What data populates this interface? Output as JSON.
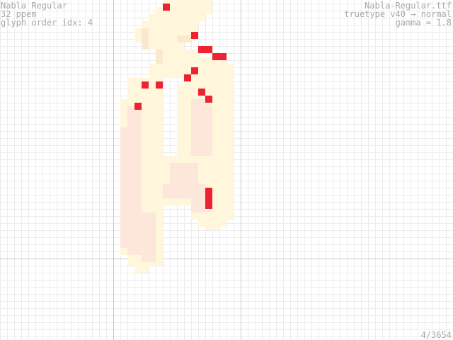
{
  "viewer": {
    "font_name": "Nabla Regular",
    "ppem": "32 ppem",
    "glyph_order": "glyph order idx: 4",
    "font_file": "Nabla-Regular.ttf",
    "engine": "truetype v40 → normal",
    "gamma": "gamma = 1.8",
    "glyph_counter": "4/3654"
  },
  "colors": {
    "background": "#ffffff",
    "grid": "#ececec",
    "axis": "#c9c9c9",
    "label_text": "#a9a9a9",
    "glyph_cream": "#fff6dc",
    "glyph_peach": "#fde6da",
    "glyph_shade": "#fbe9cf",
    "highlight": "#ee2233"
  }
}
